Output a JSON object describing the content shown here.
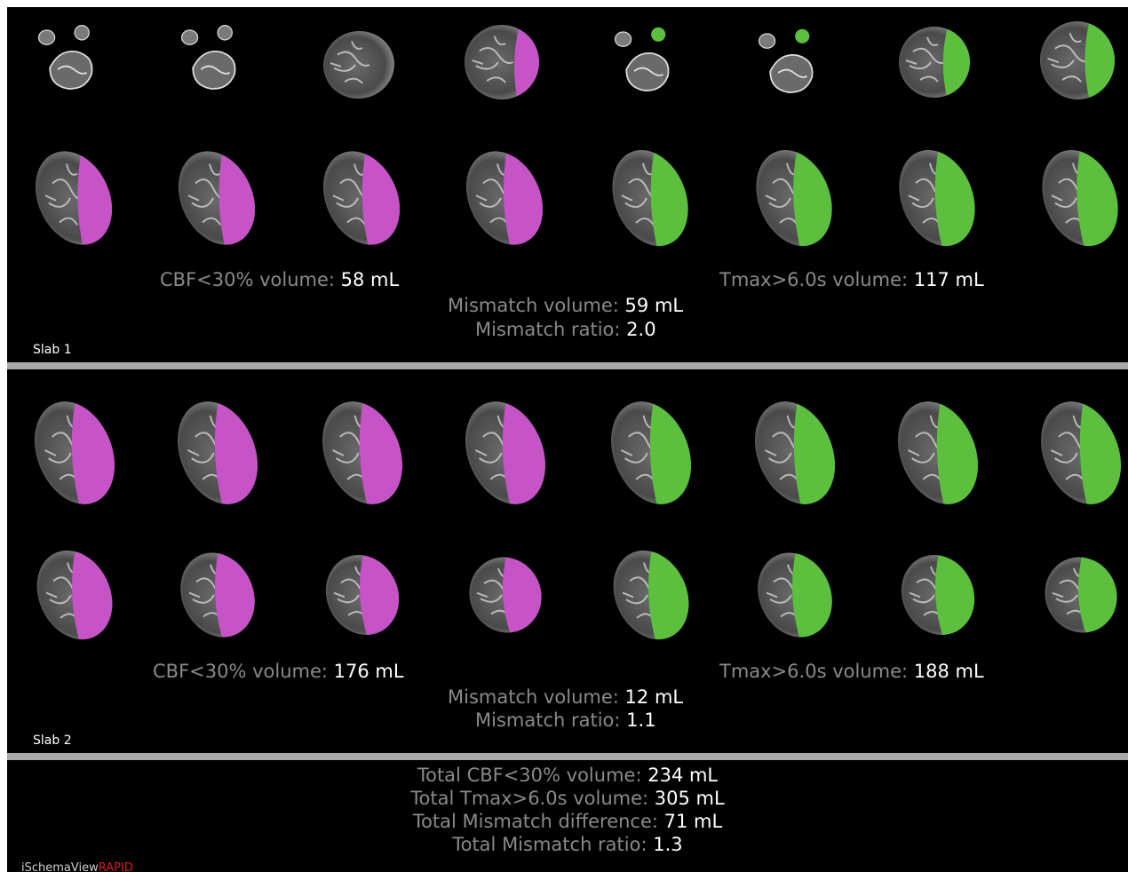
{
  "colors": {
    "background": "#000000",
    "cbf_lesion": "#c654c6",
    "tmax_lesion": "#5cbf3e",
    "label_gray": "#8a8a8a",
    "value_white": "#ffffff",
    "separator": "#a8a8a8",
    "brand_red": "#d81f1f"
  },
  "slabs": [
    {
      "label": "Slab 1",
      "cbf_label": "CBF<30% volume:",
      "cbf_value": "58 mL",
      "tmax_label": "Tmax>6.0s volume:",
      "tmax_value": "117 mL",
      "mismatch_volume_label": "Mismatch volume:",
      "mismatch_volume_value": "59 mL",
      "mismatch_ratio_label": "Mismatch ratio:",
      "mismatch_ratio_value": "2.0"
    },
    {
      "label": "Slab 2",
      "cbf_label": "CBF<30% volume:",
      "cbf_value": "176 mL",
      "tmax_label": "Tmax>6.0s volume:",
      "tmax_value": "188 mL",
      "mismatch_volume_label": "Mismatch volume:",
      "mismatch_volume_value": "12 mL",
      "mismatch_ratio_label": "Mismatch ratio:",
      "mismatch_ratio_value": "1.1"
    }
  ],
  "totals": {
    "cbf_label": "Total CBF<30% volume:",
    "cbf_value": "234 mL",
    "tmax_label": "Total Tmax>6.0s volume:",
    "tmax_value": "305 mL",
    "diff_label": "Total Mismatch difference:",
    "diff_value": "71 mL",
    "ratio_label": "Total Mismatch ratio:",
    "ratio_value": "1.3"
  },
  "brand": {
    "name": "iSchemaView",
    "product": "RAPID"
  }
}
